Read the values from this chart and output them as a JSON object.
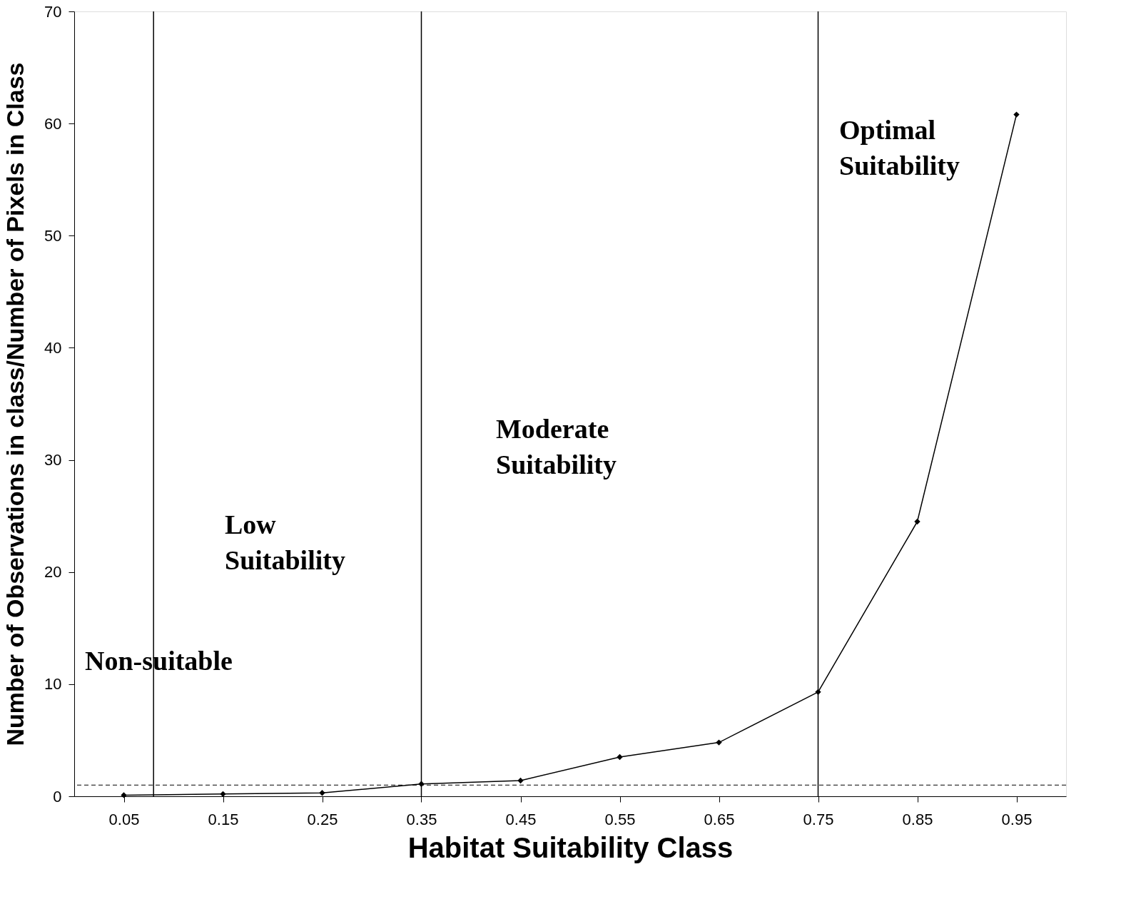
{
  "chart_data": {
    "type": "line",
    "xlabel": "Habitat Suitability Class",
    "ylabel": "Number of Observations in class/Number of Pixels in Class",
    "x": [
      0.05,
      0.15,
      0.25,
      0.35,
      0.45,
      0.55,
      0.65,
      0.75,
      0.85,
      0.95
    ],
    "series": [
      {
        "color": "#000000",
        "values": [
          0.1,
          0.2,
          0.3,
          1.1,
          1.4,
          3.5,
          4.8,
          9.3,
          24.5,
          60.8
        ]
      }
    ],
    "xlim": [
      0,
      1.0
    ],
    "xticks": [
      0.05,
      0.15,
      0.25,
      0.35,
      0.45,
      0.55,
      0.65,
      0.75,
      0.85,
      0.95
    ],
    "ylim": [
      0,
      70
    ],
    "yticks": [
      0,
      10,
      20,
      30,
      40,
      50,
      60,
      70
    ],
    "ref_lines": [
      {
        "axis": "x",
        "value": 0.08,
        "color": "#000000",
        "line_style": "solid"
      },
      {
        "axis": "x",
        "value": 0.35,
        "color": "#000000",
        "line_style": "solid"
      },
      {
        "axis": "x",
        "value": 0.75,
        "color": "#000000",
        "line_style": "solid"
      },
      {
        "axis": "y",
        "value": 1,
        "color": "#000000",
        "line_style": "dashed"
      }
    ],
    "annotations": [
      "Non-suitable",
      "Low\nSuitability",
      "Moderate\nSuitability",
      "Optimal\nSuitability"
    ],
    "marker": "diamond",
    "line_style": "solid",
    "grid": false
  }
}
